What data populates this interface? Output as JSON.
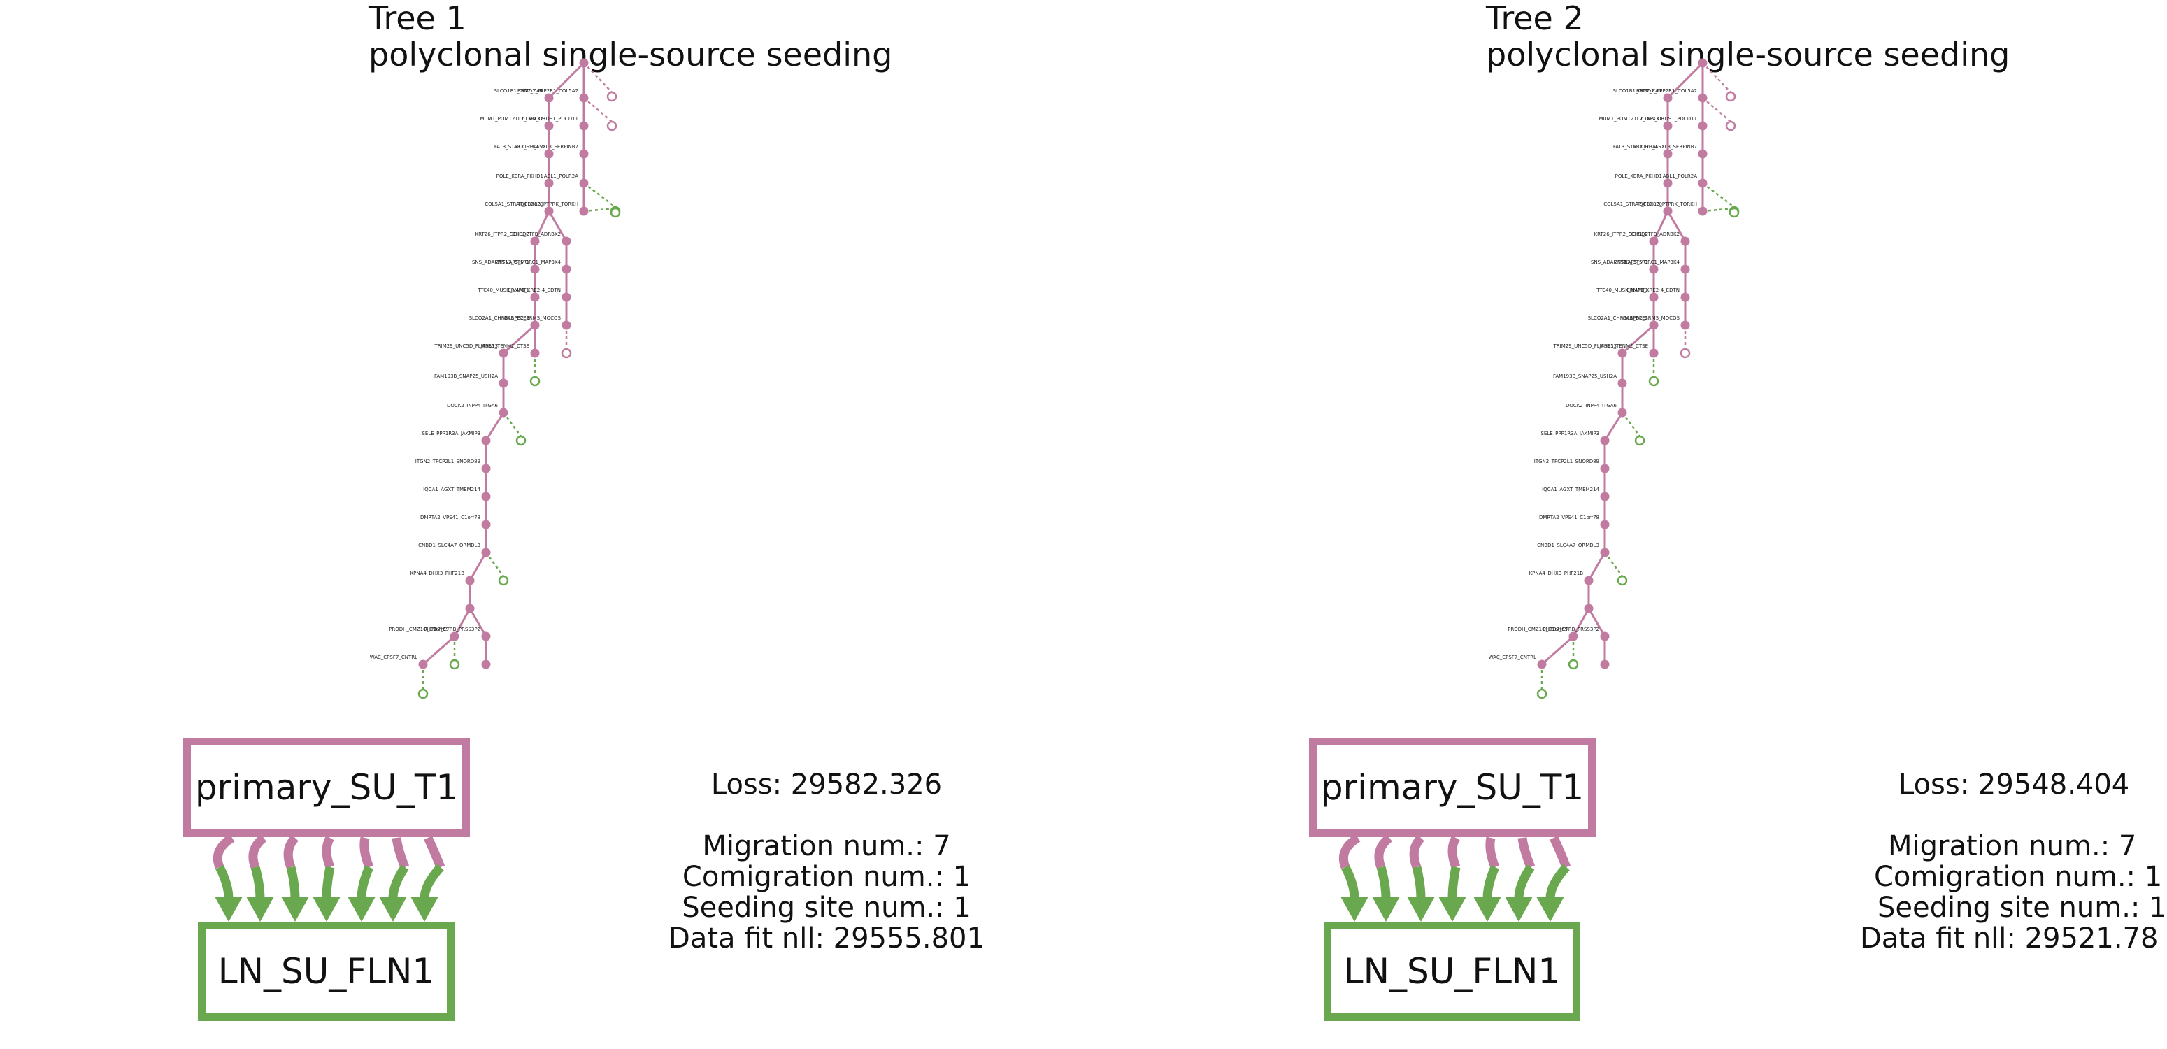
{
  "colors": {
    "primary": "#c27ba0",
    "ln": "#6aa84f"
  },
  "labels": [
    "SLCO1B1_GIT2_ZAN",
    "BRMD1_PPP2R1_COL5A2",
    "MUM1_POM121L2_DHX37",
    "CLMN_ORDS1_PDCD11",
    "FAT3_STAB2_HDAC7",
    "STX17B_ASXL3_SERPINB7",
    "POLE_KERA_PKHD1",
    "ABL1_POLR2A",
    "COL5A1_STRAP_FBXL20",
    "TBC1D8B_PTPRK_TORKH",
    "KRT26_ITPR2_FCHSD2",
    "GCH1_ETFB_ADRBK2",
    "SNS_ADAMTS13_GTSF1",
    "CNTNAP5_MORC1_MAP3K4",
    "TTC40_MUSK_NAMT1",
    "ERMP1_KRE2-4_EDTN",
    "SLCO2A1_CHRDL1_ECE2",
    "GABPB2_SRMS_MOCOS",
    "TRIM29_UNC5D_FLJ45313",
    "FHL3_TENM2_CTSE",
    "FAM193B_SNAP25_USH2A",
    "DOCK2_INPP4_ITGA6",
    "SELE_PPP1R3A_JAKMIP3",
    "ITGN2_TPCP2L1_SNORD89",
    "IQCA1_AGXT_TMEM214",
    "DMRTA2_VPS41_C1orf78",
    "CNBD1_SLC4A7_ORMDL3",
    "KPNA4_DHX3_PHF21B",
    "PRODH_CMZ1O_C9orf69",
    "WAC_CPSF7_CNTRL",
    "PHTD7_CTRB_PRSS3P2"
  ],
  "trees": [
    {
      "title": "Tree 1",
      "subtitle": "polyclonal single-source seeding",
      "primary_site": "primary_SU_T1",
      "ln_site": "LN_SU_FLN1",
      "loss": "Loss: 29582.326",
      "migration": "Migration num.: 7",
      "comigration": "Comigration num.: 1",
      "seeding": "Seeding site num.: 1",
      "datafit": "Data fit nll: 29555.801"
    },
    {
      "title": "Tree 2",
      "subtitle": "polyclonal single-source seeding",
      "primary_site": "primary_SU_T1",
      "ln_site": "LN_SU_FLN1",
      "loss": "Loss: 29548.404",
      "migration": "Migration num.: 7",
      "comigration": "Comigration num.: 1",
      "seeding": "Seeding site num.: 1",
      "datafit": "Data fit nll: 29521.78"
    }
  ]
}
